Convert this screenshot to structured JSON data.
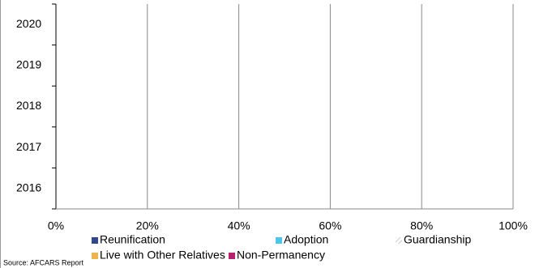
{
  "chart_data": {
    "type": "stacked-barh",
    "categories": [
      "2020",
      "2019",
      "2018",
      "2017",
      "2016"
    ],
    "series": [
      {
        "name": "Reunification",
        "color": "#2e4a8a",
        "values": [
          null,
          null,
          null,
          null,
          null
        ]
      },
      {
        "name": "Adoption",
        "color": "#4cc4ec",
        "values": [
          null,
          null,
          null,
          null,
          null
        ]
      },
      {
        "name": "Guardianship",
        "color": "#c8c8c8",
        "hatch": true,
        "values": [
          null,
          null,
          null,
          null,
          null
        ]
      },
      {
        "name": "Live with Other Relatives",
        "color": "#f2b34a",
        "values": [
          null,
          null,
          null,
          null,
          null
        ]
      },
      {
        "name": "Non-Permanency",
        "color": "#b5216f",
        "values": [
          null,
          null,
          null,
          null,
          null
        ]
      }
    ],
    "xlim": [
      0,
      100
    ],
    "xticks": [
      {
        "value": 0,
        "label": "0%"
      },
      {
        "value": 20,
        "label": "20%"
      },
      {
        "value": 40,
        "label": "40%"
      },
      {
        "value": 60,
        "label": "60%"
      },
      {
        "value": 80,
        "label": "80%"
      },
      {
        "value": 100,
        "label": "100%"
      }
    ],
    "grid": true,
    "source": "Source: AFCARS Report"
  }
}
